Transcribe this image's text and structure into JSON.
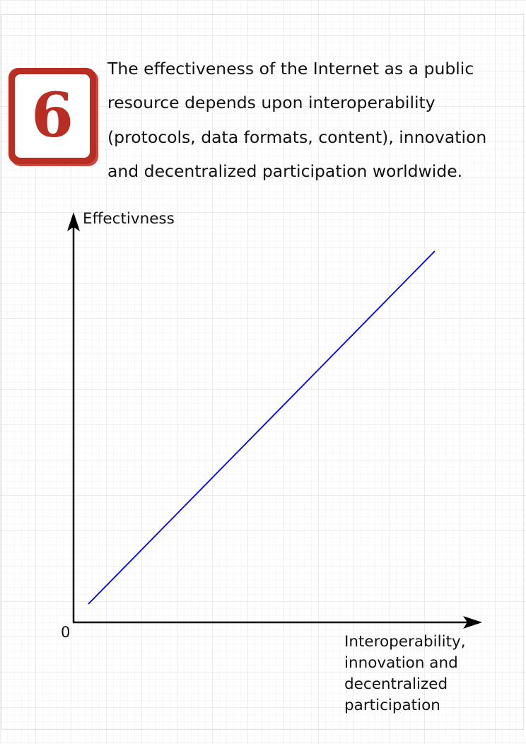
{
  "badge": {
    "number": "6",
    "color": "#b92d23"
  },
  "statement": {
    "lines": [
      "The effectiveness of the Internet as a public",
      "resource depends upon interoperability",
      "(protocols, data formats, content), innovation",
      "and decentralized participation worldwide."
    ]
  },
  "diagram": {
    "y_label": "Effectivness",
    "origin_label": "0",
    "x_label_lines": [
      "Interoperability,",
      "innovation and",
      "decentralized",
      "participation"
    ],
    "line_color": "#0000ee",
    "axis_color": "#000000"
  }
}
